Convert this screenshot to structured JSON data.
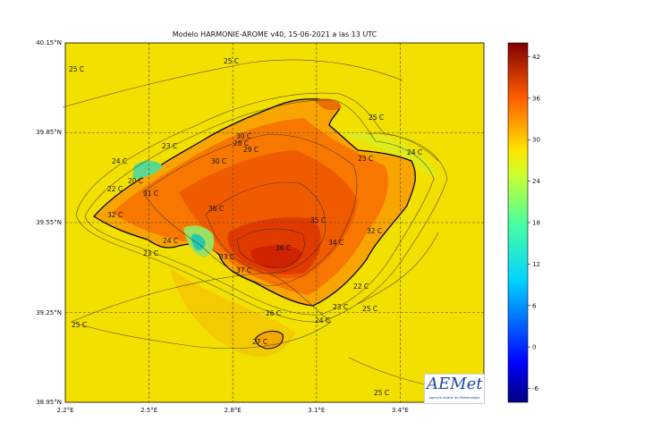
{
  "title": "Modelo HARMONIE-AROME v40, 15-06-2021 a las 13 UTC",
  "axes": {
    "lat_ticks": [
      "40.15°N",
      "39.85°N",
      "39.55°N",
      "39.25°N",
      "38.95°N"
    ],
    "lon_ticks": [
      "2.2°E",
      "2.5°E",
      "2.8°E",
      "3.1°E",
      "3.4°E"
    ]
  },
  "colorbar": {
    "ticks": [
      "42",
      "36",
      "30",
      "24",
      "18",
      "12",
      "6",
      "0",
      "-6"
    ],
    "range": [
      -8,
      44
    ],
    "colormap": "jet"
  },
  "contour_labels": [
    "25 C",
    "25 C",
    "25 C",
    "25 C",
    "25 C",
    "25 C",
    "24 C",
    "24 C",
    "24 C",
    "24 C",
    "23 C",
    "23 C",
    "23 C",
    "23 C",
    "22 C",
    "22 C",
    "20 C",
    "30 C",
    "28 C",
    "29 C",
    "30 C",
    "31 C",
    "32 C",
    "36 C",
    "36 C",
    "35 C",
    "34 C",
    "33 C",
    "37 C",
    "32 C",
    "26 C",
    "27 C"
  ],
  "logo": {
    "text": "AEMet",
    "subtitle": "Agencia Estatal de Meteorología"
  }
}
